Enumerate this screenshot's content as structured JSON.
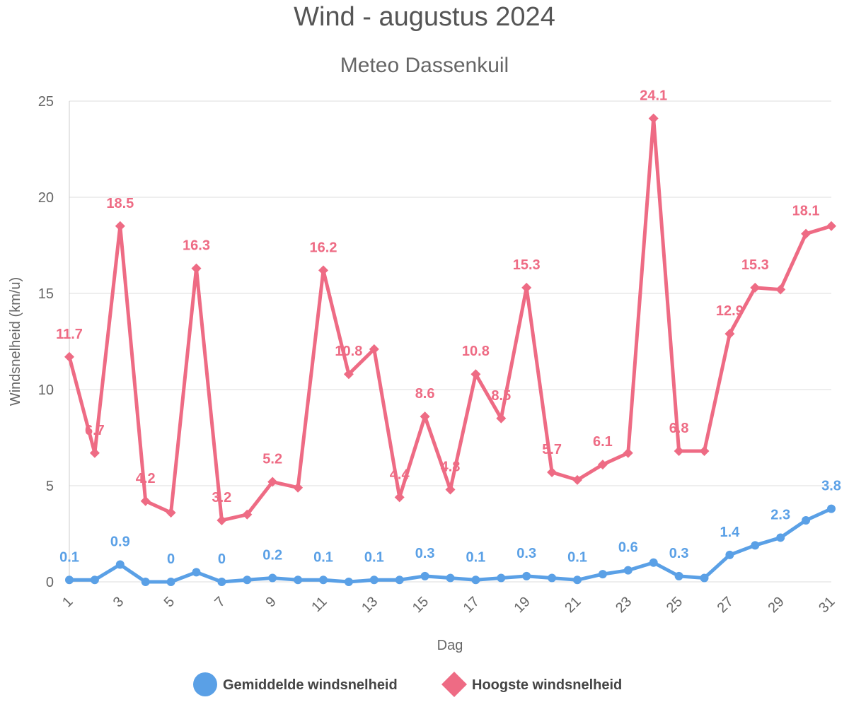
{
  "chart_data": {
    "type": "line",
    "title": "Wind - augustus 2024",
    "subtitle": "Meteo Dassenkuil",
    "xlabel": "Dag",
    "ylabel": "Windsnelheid (km/u)",
    "x": [
      1,
      2,
      3,
      4,
      5,
      6,
      7,
      8,
      9,
      10,
      11,
      12,
      13,
      14,
      15,
      16,
      17,
      18,
      19,
      20,
      21,
      22,
      23,
      24,
      25,
      26,
      27,
      28,
      29,
      30,
      31
    ],
    "x_ticks": [
      "1",
      "3",
      "5",
      "7",
      "9",
      "11",
      "13",
      "15",
      "17",
      "19",
      "21",
      "23",
      "25",
      "27",
      "29",
      "31"
    ],
    "y_ticks": [
      "0",
      "5",
      "10",
      "15",
      "20",
      "25"
    ],
    "ylim": [
      0,
      25
    ],
    "grid": true,
    "legend_position": "bottom",
    "series": [
      {
        "name": "Gemiddelde windsnelheid",
        "color": "#5aa0e6",
        "marker": "circle",
        "values": [
          0.1,
          0.1,
          0.9,
          0,
          0,
          0.5,
          0,
          0.1,
          0.2,
          0.1,
          0.1,
          0,
          0.1,
          0.1,
          0.3,
          0.2,
          0.1,
          0.2,
          0.3,
          0.2,
          0.1,
          0.4,
          0.6,
          1.0,
          0.3,
          0.2,
          1.4,
          1.9,
          2.3,
          3.2,
          3.8
        ],
        "labels": [
          "0.1",
          "",
          "0.9",
          "",
          "0",
          "",
          "0",
          "",
          "0.2",
          "",
          "0.1",
          "",
          "0.1",
          "",
          "0.3",
          "",
          "0.1",
          "",
          "0.3",
          "",
          "0.1",
          "",
          "0.6",
          "",
          "0.3",
          "",
          "1.4",
          "",
          "2.3",
          "",
          "3.8"
        ]
      },
      {
        "name": "Hoogste windsnelheid",
        "color": "#ee6b84",
        "marker": "diamond",
        "values": [
          11.7,
          6.7,
          18.5,
          4.2,
          3.6,
          16.3,
          3.2,
          3.5,
          5.2,
          4.9,
          16.2,
          10.8,
          12.1,
          4.4,
          8.6,
          4.8,
          10.8,
          8.5,
          15.3,
          5.7,
          5.3,
          6.1,
          6.7,
          24.1,
          6.8,
          6.8,
          12.9,
          15.3,
          15.2,
          18.1,
          18.5
        ],
        "labels": [
          "11.7",
          "6.7",
          "18.5",
          "4.2",
          "",
          "16.3",
          "3.2",
          "",
          "5.2",
          "",
          "16.2",
          "10.8",
          "",
          "4.4",
          "8.6",
          "4.8",
          "10.8",
          "8.5",
          "15.3",
          "5.7",
          "",
          "6.1",
          "",
          "24.1",
          "6.8",
          "",
          "12.9",
          "15.3",
          "",
          "18.1",
          ""
        ]
      }
    ]
  }
}
